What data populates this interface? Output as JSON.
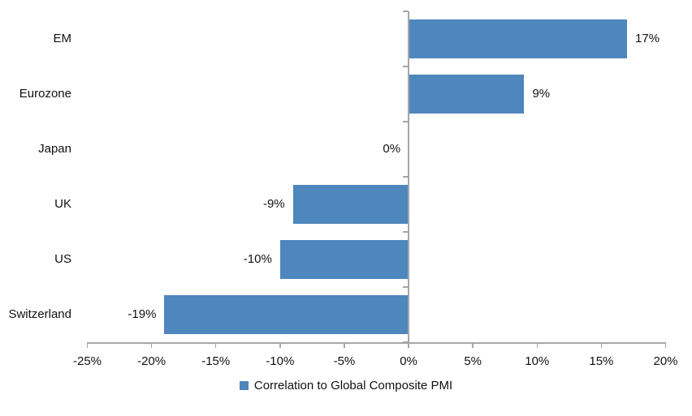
{
  "chart_data": {
    "type": "bar",
    "orientation": "horizontal",
    "title": "",
    "categories": [
      "EM",
      "Eurozone",
      "Japan",
      "UK",
      "US",
      "Switzerland"
    ],
    "values": [
      17,
      9,
      0,
      -9,
      -10,
      -19
    ],
    "value_labels": [
      "17%",
      "9%",
      "0%",
      "-9%",
      "-10%",
      "-19%"
    ],
    "series_name": "Correlation to Global Composite PMI",
    "xlim": [
      -25,
      20
    ],
    "x_ticks": [
      -25,
      -20,
      -15,
      -10,
      -5,
      0,
      5,
      10,
      15,
      20
    ],
    "x_tick_labels": [
      "-25%",
      "-20%",
      "-15%",
      "-10%",
      "-5%",
      "0%",
      "5%",
      "10%",
      "15%",
      "20%"
    ],
    "grid": false,
    "legend_position": "bottom-center",
    "bar_color": "#4e86be",
    "axis_color": "#a6a6a6",
    "text_color": "#111111"
  },
  "legend": {
    "items": [
      {
        "label": "Correlation to Global Composite PMI",
        "color": "#4e86be"
      }
    ]
  }
}
